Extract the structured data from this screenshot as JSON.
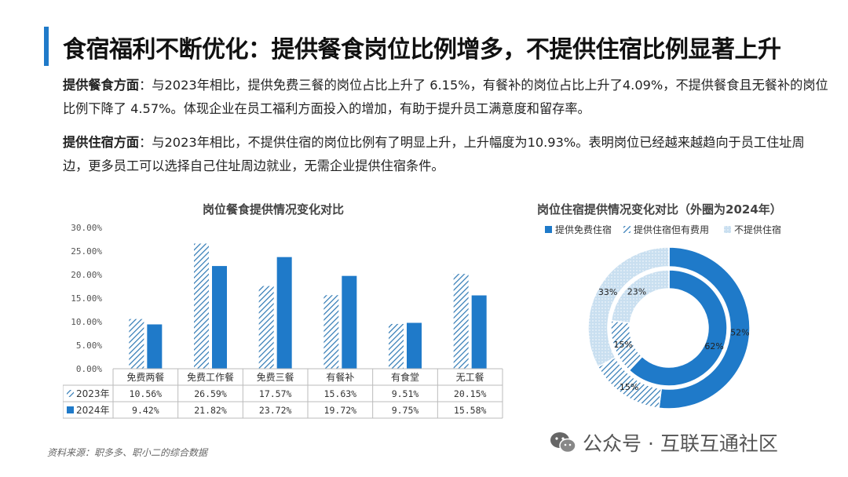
{
  "header": {
    "title": "食宿福利不断优化：提供餐食岗位比例增多，不提供住宿比例显著上升"
  },
  "paragraphs": {
    "p1_label": "提供餐食方面",
    "p1_text": "：与2023年相比，提供免费三餐的岗位占比上升了 6.15%，有餐补的岗位占比上升了4.09%，不提供餐食且无餐补的岗位比例下降了 4.57%。体现企业在员工福利方面投入的增加，有助于提升员工满意度和留存率。",
    "p2_label": "提供住宿方面",
    "p2_text": "：与2023年相比，不提供住宿的岗位比例有了明显上升，上升幅度为10.93%。表明岗位已经越来越趋向于员工住址周边，更多员工可以选择自己住址周边就业，无需企业提供住宿条件。"
  },
  "source": "资料来源：职多多、职小二的综合数据",
  "watermark": "公众号 · 互联互通社区",
  "colors": {
    "accent": "#1f7ac9",
    "light": "#c9dff0",
    "hatch": "#2d78b4"
  },
  "chart_data": [
    {
      "type": "bar",
      "title": "岗位餐食提供情况变化对比",
      "categories": [
        "免费两餐",
        "免费工作餐",
        "免费三餐",
        "有餐补",
        "有食堂",
        "无工餐"
      ],
      "ylim": [
        0,
        30
      ],
      "yticks": [
        "0.00%",
        "5.00%",
        "10.00%",
        "15.00%",
        "20.00%",
        "25.00%",
        "30.00%"
      ],
      "grid": false,
      "legend": "data-table",
      "series": [
        {
          "name": "2023年",
          "values": [
            10.56,
            26.59,
            17.57,
            15.63,
            9.51,
            20.15
          ],
          "labels": [
            "10.56%",
            "26.59%",
            "17.57%",
            "15.63%",
            "9.51%",
            "20.15%"
          ],
          "style": "hatched"
        },
        {
          "name": "2024年",
          "values": [
            9.42,
            21.82,
            23.72,
            19.72,
            9.75,
            15.58
          ],
          "labels": [
            "9.42%",
            "21.82%",
            "23.72%",
            "19.72%",
            "9.75%",
            "15.58%"
          ],
          "style": "solid"
        }
      ]
    },
    {
      "type": "pie",
      "title": "岗位住宿提供情况变化对比（外圈为2024年）",
      "legend": "top",
      "categories": [
        "提供免费住宿",
        "提供住宿但有费用",
        "不提供住宿"
      ],
      "series": [
        {
          "name": "2024年",
          "ring": "outer",
          "values": [
            52,
            15,
            33
          ],
          "labels": [
            "52%",
            "15%",
            "33%"
          ]
        },
        {
          "name": "2023年",
          "ring": "inner",
          "values": [
            62,
            15,
            23
          ],
          "labels": [
            "62%",
            "15%",
            "23%"
          ]
        }
      ]
    }
  ]
}
